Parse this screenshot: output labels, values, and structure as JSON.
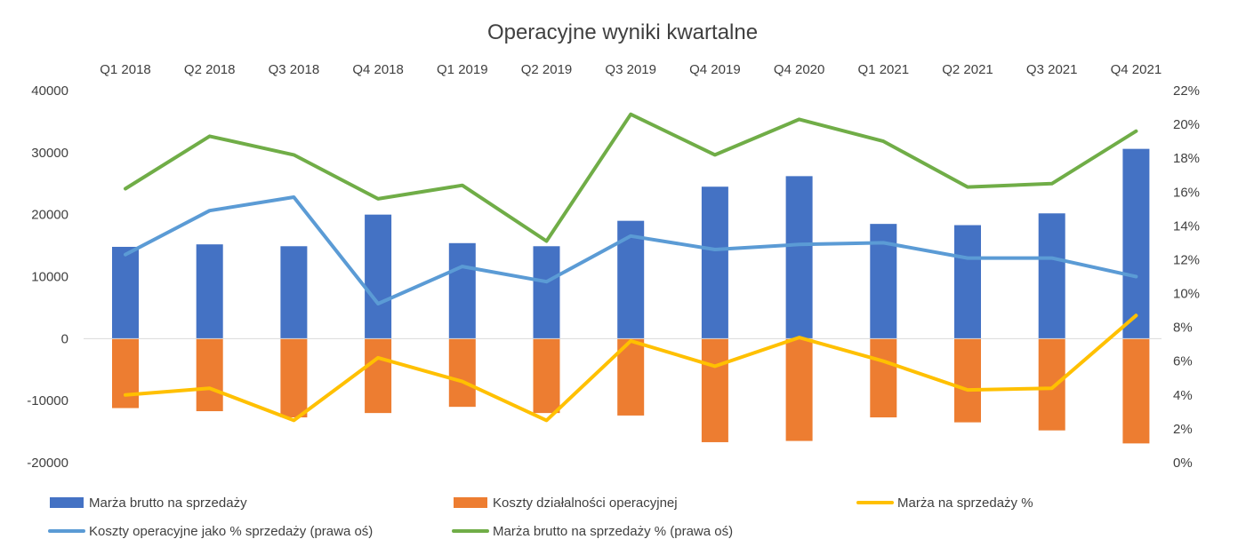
{
  "chart_data": {
    "type": "bar",
    "title": "Operacyjne wyniki kwartalne",
    "categories": [
      "Q1 2018",
      "Q2 2018",
      "Q3 2018",
      "Q4 2018",
      "Q1 2019",
      "Q2 2019",
      "Q3 2019",
      "Q4 2019",
      "Q4 2020",
      "Q1 2021",
      "Q2 2021",
      "Q3 2021",
      "Q4 2021"
    ],
    "category_axis_position": "top",
    "y_left": {
      "min": -20000,
      "max": 40000,
      "step": 10000,
      "ticks": [
        "40000",
        "30000",
        "20000",
        "10000",
        "0",
        "-10000",
        "-20000"
      ]
    },
    "y_right": {
      "min": 0,
      "max": 22,
      "step": 2,
      "unit": "%",
      "ticks": [
        "22%",
        "20%",
        "18%",
        "16%",
        "14%",
        "12%",
        "10%",
        "8%",
        "6%",
        "4%",
        "2%",
        "0%"
      ]
    },
    "grid": false,
    "legend_position": "bottom",
    "series": [
      {
        "name": "Marża brutto na sprzedaży",
        "kind": "bar",
        "axis": "left",
        "color": "#4472C4",
        "values": [
          14800,
          15200,
          14900,
          20000,
          15400,
          14900,
          19000,
          24500,
          26200,
          18500,
          18300,
          20200,
          30600
        ]
      },
      {
        "name": "Koszty działalności operacyjnej",
        "kind": "bar",
        "axis": "left",
        "color": "#ED7D31",
        "values": [
          -11200,
          -11700,
          -12700,
          -12000,
          -11000,
          -12000,
          -12400,
          -16700,
          -16500,
          -12700,
          -13500,
          -14800,
          -16900
        ]
      },
      {
        "name": "Marża na sprzedaży %",
        "kind": "line",
        "axis": "right",
        "color": "#FFC000",
        "values": [
          4.0,
          4.4,
          2.5,
          6.2,
          4.8,
          2.5,
          7.2,
          5.7,
          7.4,
          6.0,
          4.3,
          4.4,
          8.7
        ]
      },
      {
        "name": "Koszty operacyjne jako % sprzedaży (prawa oś)",
        "kind": "line",
        "axis": "right",
        "color": "#5B9BD5",
        "values": [
          12.3,
          14.9,
          15.7,
          9.4,
          11.6,
          10.7,
          13.4,
          12.6,
          12.9,
          13.0,
          12.1,
          12.1,
          11.0
        ]
      },
      {
        "name": "Marża brutto na sprzedaży % (prawa oś)",
        "kind": "line",
        "axis": "right",
        "color": "#70AD47",
        "values": [
          16.2,
          19.3,
          18.2,
          15.6,
          16.4,
          13.1,
          20.6,
          18.2,
          20.3,
          19.0,
          16.3,
          16.5,
          19.6
        ]
      }
    ]
  }
}
